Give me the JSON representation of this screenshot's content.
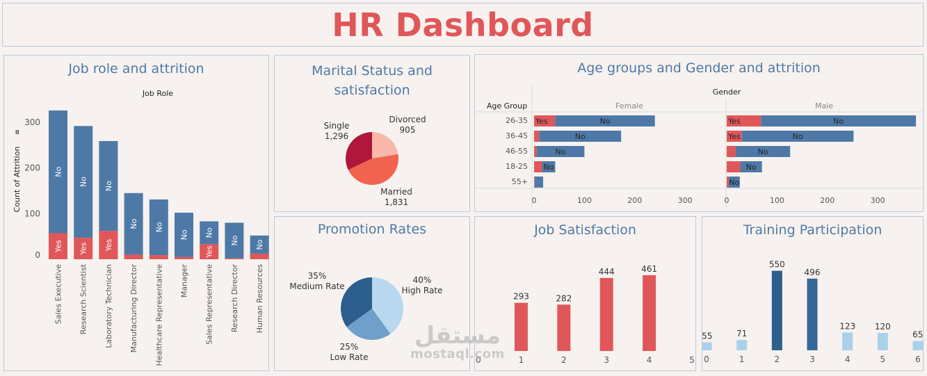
{
  "dashboard": {
    "title": "HR Dashboard"
  },
  "colors": {
    "accent_red": "#e05759",
    "accent_blue": "#4e79a7",
    "bg": "#f7f2ef"
  },
  "job_role": {
    "title": "Job role and attrition",
    "header": "Job Role",
    "ylabel": "Count of Attrition",
    "chart_data": {
      "type": "bar",
      "stacked": true,
      "categories": [
        "Sales Executive",
        "Research Scientist",
        "Laboratory Technician",
        "Manufacturing Director",
        "Healthcare Representative",
        "Manager",
        "Sales Representative",
        "Research Director",
        "Human Resources"
      ],
      "series": [
        {
          "name": "Yes",
          "values": [
            57,
            47,
            62,
            10,
            9,
            5,
            33,
            2,
            12
          ],
          "label": "Yes",
          "show_label": [
            true,
            true,
            true,
            false,
            false,
            false,
            true,
            false,
            false
          ]
        },
        {
          "name": "No",
          "values": [
            269,
            245,
            197,
            135,
            122,
            97,
            50,
            78,
            40
          ],
          "label": "No",
          "show_label": [
            true,
            true,
            true,
            true,
            true,
            true,
            true,
            true,
            true
          ]
        }
      ],
      "yticks": [
        0,
        100,
        200,
        300
      ],
      "ylim": [
        0,
        340
      ]
    }
  },
  "marital": {
    "title_line1": "Marital Status and",
    "title_line2": "satisfaction",
    "chart_data": {
      "type": "pie",
      "slices": [
        {
          "label": "Divorced",
          "value": 905,
          "display": "905",
          "color": "#f8b8aa"
        },
        {
          "label": "Married",
          "value": 1831,
          "display": "1,831",
          "color": "#f26450"
        },
        {
          "label": "Single",
          "value": 1296,
          "display": "1,296",
          "color": "#b0173a"
        }
      ]
    }
  },
  "age": {
    "title": "Age groups and Gender and attrition",
    "gender_header": "Gender",
    "age_header": "Age Group",
    "female_label": "Female",
    "male_label": "Male",
    "chart_data": {
      "type": "bar",
      "orientation": "horizontal",
      "stacked": true,
      "categories": [
        "26-35",
        "36-45",
        "46-55",
        "18-25",
        "55+"
      ],
      "xticks": [
        0,
        100,
        200,
        300
      ],
      "xlim": [
        0,
        380
      ],
      "panels": [
        {
          "name": "Female",
          "yes": [
            42,
            10,
            5,
            16,
            1
          ],
          "no": [
            198,
            163,
            95,
            26,
            17
          ],
          "yes_label": [
            "Yes",
            "",
            "",
            "",
            ""
          ],
          "no_label": [
            "No",
            "No",
            "No",
            "No",
            ""
          ]
        },
        {
          "name": "Male",
          "yes": [
            68,
            30,
            18,
            27,
            4
          ],
          "no": [
            308,
            222,
            108,
            43,
            22
          ],
          "yes_label": [
            "Yes",
            "Yes",
            "",
            "",
            ""
          ],
          "no_label": [
            "No",
            "No",
            "No",
            "No",
            "No"
          ]
        }
      ]
    }
  },
  "promotion": {
    "title": "Promotion Rates",
    "chart_data": {
      "type": "pie",
      "slices": [
        {
          "label": "High Rate",
          "pct": "40%",
          "value": 40,
          "color": "#b7d8ee"
        },
        {
          "label": "Low Rate",
          "pct": "25%",
          "value": 25,
          "color": "#6f9fca"
        },
        {
          "label": "Medium Rate",
          "pct": "35%",
          "value": 35,
          "color": "#2c5f8e"
        }
      ]
    }
  },
  "job_satisfaction": {
    "title": "Job Satisfaction",
    "chart_data": {
      "type": "bar",
      "x": [
        1,
        2,
        3,
        4
      ],
      "values": [
        293,
        282,
        444,
        461
      ],
      "xticks": [
        0,
        1,
        2,
        3,
        4,
        5
      ],
      "xlim": [
        0,
        5
      ],
      "ylim": [
        0,
        520
      ],
      "color": "#e05759"
    }
  },
  "training": {
    "title": "Training Participation",
    "chart_data": {
      "type": "bar",
      "x": [
        0,
        1,
        2,
        3,
        4,
        5,
        6
      ],
      "values": [
        55,
        71,
        550,
        496,
        123,
        120,
        65
      ],
      "xticks": [
        0,
        1,
        2,
        3,
        4,
        5,
        6
      ],
      "xlim": [
        0,
        6
      ],
      "ylim": [
        0,
        620
      ],
      "colors": [
        "#a9d1ea",
        "#a9d1ea",
        "#2d5f8d",
        "#36679a",
        "#a9d1ea",
        "#a9d1ea",
        "#a9d1ea"
      ]
    }
  },
  "watermark": {
    "arabic": "مستقل",
    "latin": "mostaql.com"
  }
}
